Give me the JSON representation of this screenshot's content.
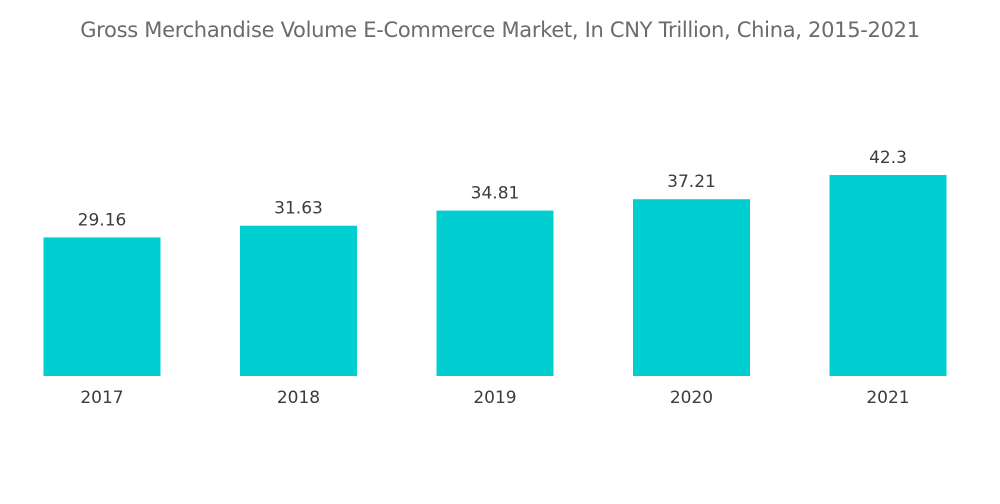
{
  "chart_data": {
    "type": "bar",
    "title": "Gross Merchandise Volume E-Commerce Market, In CNY Trillion, China, 2015-2021",
    "categories": [
      "2017",
      "2018",
      "2019",
      "2020",
      "2021"
    ],
    "values": [
      29.16,
      31.63,
      34.81,
      37.21,
      42.3
    ],
    "value_labels": [
      "29.16",
      "31.63",
      "34.81",
      "37.21",
      "42.3"
    ],
    "xlabel": "",
    "ylabel": "",
    "ylim": [
      0,
      42.3
    ],
    "grid": false,
    "legend": "none",
    "bar_color": "#00CED1"
  }
}
